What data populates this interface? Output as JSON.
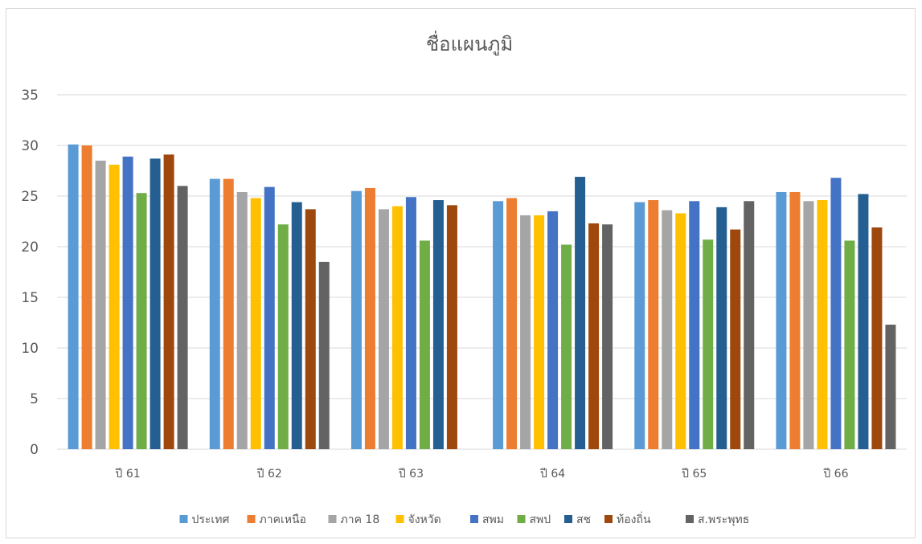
{
  "chart_data": {
    "type": "bar",
    "title": "ชื่อแผนภูมิ",
    "xlabel": "",
    "ylabel": "",
    "ylim": [
      0,
      35
    ],
    "yticks": [
      0,
      5,
      10,
      15,
      20,
      25,
      30,
      35
    ],
    "grid": true,
    "legend_position": "bottom",
    "categories": [
      "ปี 61",
      "ปี 62",
      "ปี 63",
      "ปี 64",
      "ปี 65",
      "ปี 66"
    ],
    "series": [
      {
        "name": "ประเทศ",
        "color": "#5B9BD5",
        "values": [
          30.1,
          26.7,
          25.5,
          24.5,
          24.4,
          25.4
        ]
      },
      {
        "name": "ภาคเหนือ",
        "color": "#ED7D31",
        "values": [
          30.0,
          26.7,
          25.8,
          24.8,
          24.6,
          25.4
        ]
      },
      {
        "name": "ภาค 18",
        "color": "#A5A5A5",
        "values": [
          28.5,
          25.4,
          23.7,
          23.1,
          23.6,
          24.5
        ]
      },
      {
        "name": "จังหวัด",
        "color": "#FFC000",
        "values": [
          28.1,
          24.8,
          24.0,
          23.1,
          23.3,
          24.6
        ]
      },
      {
        "name": "สพม",
        "color": "#4472C4",
        "values": [
          28.9,
          25.9,
          24.9,
          23.5,
          24.5,
          26.8
        ]
      },
      {
        "name": "สพป",
        "color": "#70AD47",
        "values": [
          25.3,
          22.2,
          20.6,
          20.2,
          20.7,
          20.6
        ]
      },
      {
        "name": "สช",
        "color": "#255E91",
        "values": [
          28.7,
          24.4,
          24.6,
          26.9,
          23.9,
          25.2
        ]
      },
      {
        "name": "ท้องถิ่น",
        "color": "#9E480E",
        "values": [
          29.1,
          23.7,
          24.1,
          22.3,
          21.7,
          21.9
        ]
      },
      {
        "name": "ส.พระพุทธ",
        "color": "#636363",
        "values": [
          26.0,
          18.5,
          null,
          22.2,
          24.5,
          12.3
        ]
      }
    ]
  }
}
